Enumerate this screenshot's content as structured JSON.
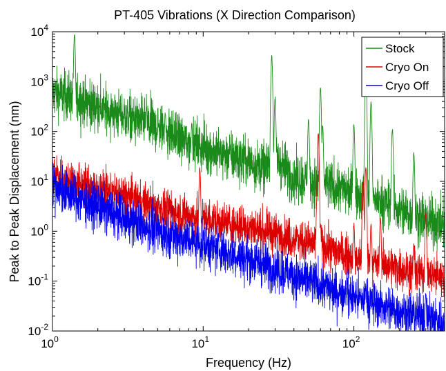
{
  "chart_data": {
    "type": "line",
    "title": "PT-405 Vibrations (X Direction Comparison)",
    "xlabel": "Frequency (Hz)",
    "ylabel": "Peak to Peak Displacement (nm)",
    "xscale": "log",
    "yscale": "log",
    "xlim": [
      1,
      400
    ],
    "ylim": [
      0.01,
      10000
    ],
    "x_ticks": [
      {
        "value": 1,
        "base": "10",
        "exp": "0"
      },
      {
        "value": 10,
        "base": "10",
        "exp": "1"
      },
      {
        "value": 100,
        "base": "10",
        "exp": "2"
      }
    ],
    "y_ticks": [
      {
        "value": 0.01,
        "base": "10",
        "exp": "-2"
      },
      {
        "value": 0.1,
        "base": "10",
        "exp": "-1"
      },
      {
        "value": 1,
        "base": "10",
        "exp": "0"
      },
      {
        "value": 10,
        "base": "10",
        "exp": "1"
      },
      {
        "value": 100,
        "base": "10",
        "exp": "2"
      },
      {
        "value": 1000,
        "base": "10",
        "exp": "3"
      },
      {
        "value": 10000,
        "base": "10",
        "exp": "4"
      }
    ],
    "grid": false,
    "legend_position": "top-right",
    "series": [
      {
        "name": "Stock",
        "color": "#1a8a1a",
        "baseline": [
          [
            1,
            600
          ],
          [
            1.5,
            450
          ],
          [
            2,
            300
          ],
          [
            3,
            200
          ],
          [
            5,
            120
          ],
          [
            8,
            60
          ],
          [
            12,
            40
          ],
          [
            20,
            25
          ],
          [
            26,
            18
          ],
          [
            30,
            30
          ],
          [
            40,
            12
          ],
          [
            60,
            9
          ],
          [
            100,
            6
          ],
          [
            150,
            4
          ],
          [
            250,
            2
          ],
          [
            400,
            1.3
          ]
        ],
        "noise": 0.55,
        "peaks": [
          [
            1.4,
            9500
          ],
          [
            2.8,
            280
          ],
          [
            4.2,
            350
          ],
          [
            5.6,
            250
          ],
          [
            8.4,
            160
          ],
          [
            28.5,
            3500
          ],
          [
            30,
            500
          ],
          [
            50,
            180
          ],
          [
            60,
            800
          ],
          [
            62,
            140
          ],
          [
            100,
            150
          ],
          [
            120,
            1800
          ],
          [
            130,
            400
          ],
          [
            180,
            120
          ],
          [
            250,
            40
          ]
        ]
      },
      {
        "name": "Cryo On",
        "color": "#dd0000",
        "baseline": [
          [
            1,
            14
          ],
          [
            2,
            7
          ],
          [
            3,
            5
          ],
          [
            5,
            3
          ],
          [
            8,
            2
          ],
          [
            12,
            1.6
          ],
          [
            20,
            1.2
          ],
          [
            30,
            0.9
          ],
          [
            40,
            0.7
          ],
          [
            60,
            0.5
          ],
          [
            100,
            0.3
          ],
          [
            150,
            0.22
          ],
          [
            250,
            0.15
          ],
          [
            400,
            0.12
          ]
        ],
        "noise": 0.45,
        "peaks": [
          [
            9.5,
            20
          ],
          [
            42,
            1.0
          ],
          [
            57,
            6
          ],
          [
            58,
            100
          ],
          [
            60,
            1.5
          ],
          [
            100,
            1.5
          ],
          [
            115,
            12
          ],
          [
            120,
            20
          ],
          [
            130,
            1.5
          ],
          [
            150,
            2
          ],
          [
            250,
            0.6
          ],
          [
            300,
            2.5
          ]
        ]
      },
      {
        "name": "Cryo Off",
        "color": "#0000ee",
        "baseline": [
          [
            1,
            8
          ],
          [
            2,
            3
          ],
          [
            3,
            1.8
          ],
          [
            5,
            1
          ],
          [
            8,
            0.7
          ],
          [
            12,
            0.45
          ],
          [
            20,
            0.28
          ],
          [
            30,
            0.18
          ],
          [
            50,
            0.1
          ],
          [
            80,
            0.06
          ],
          [
            120,
            0.04
          ],
          [
            200,
            0.025
          ],
          [
            400,
            0.015
          ]
        ],
        "noise": 0.5,
        "peaks": [
          [
            90,
            0.1
          ],
          [
            120,
            0.08
          ],
          [
            300,
            0.06
          ]
        ]
      }
    ]
  }
}
